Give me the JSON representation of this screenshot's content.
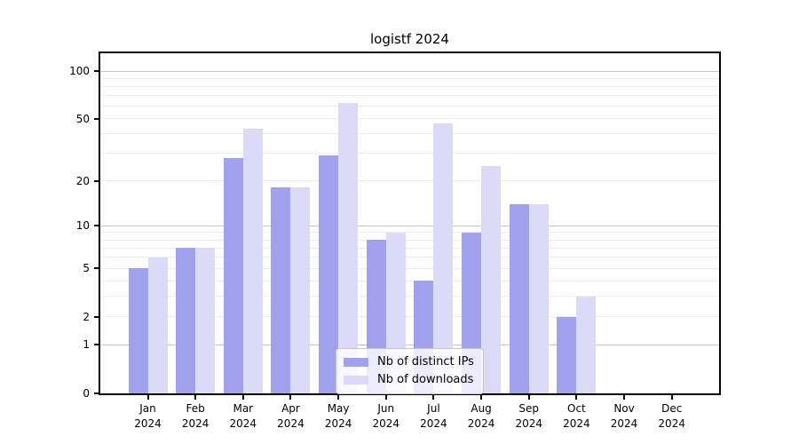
{
  "title": "logistf 2024",
  "chart_data": {
    "type": "bar",
    "title": "logistf 2024",
    "categories": [
      "Jan",
      "Feb",
      "Mar",
      "Apr",
      "May",
      "Jun",
      "Jul",
      "Aug",
      "Sep",
      "Oct",
      "Nov",
      "Dec"
    ],
    "category_year": "2024",
    "series": [
      {
        "name": "Nb of distinct IPs",
        "color": "#a1a1ee",
        "values": [
          5,
          7,
          28,
          18,
          29,
          8,
          4,
          9,
          14,
          2,
          0,
          0
        ]
      },
      {
        "name": "Nb of downloads",
        "color": "#dbdbf8",
        "values": [
          6,
          7,
          43,
          18,
          63,
          9,
          47,
          25,
          14,
          3,
          0,
          0
        ]
      }
    ],
    "xlabel": "",
    "ylabel": "",
    "yscale": "log1p",
    "ylim": [
      0,
      130
    ],
    "yticks": [
      0,
      1,
      2,
      5,
      10,
      20,
      50,
      100
    ],
    "minor_gridlines": [
      2,
      3,
      4,
      5,
      6,
      7,
      8,
      9,
      20,
      30,
      40,
      50,
      60,
      70,
      80,
      90
    ],
    "major_gridlines": [
      1,
      10,
      100
    ],
    "grid": true,
    "legend_position": "lower center (inside plot)"
  },
  "colors": {
    "bar_ips": "#a1a1ee",
    "bar_downloads": "#dbdbf8",
    "grid_minor": "#ececec",
    "grid_major": "#c6c6c6",
    "axis": "#000000",
    "legend_border": "#c4c4c4",
    "background": "#ffffff",
    "text": "#000000"
  }
}
